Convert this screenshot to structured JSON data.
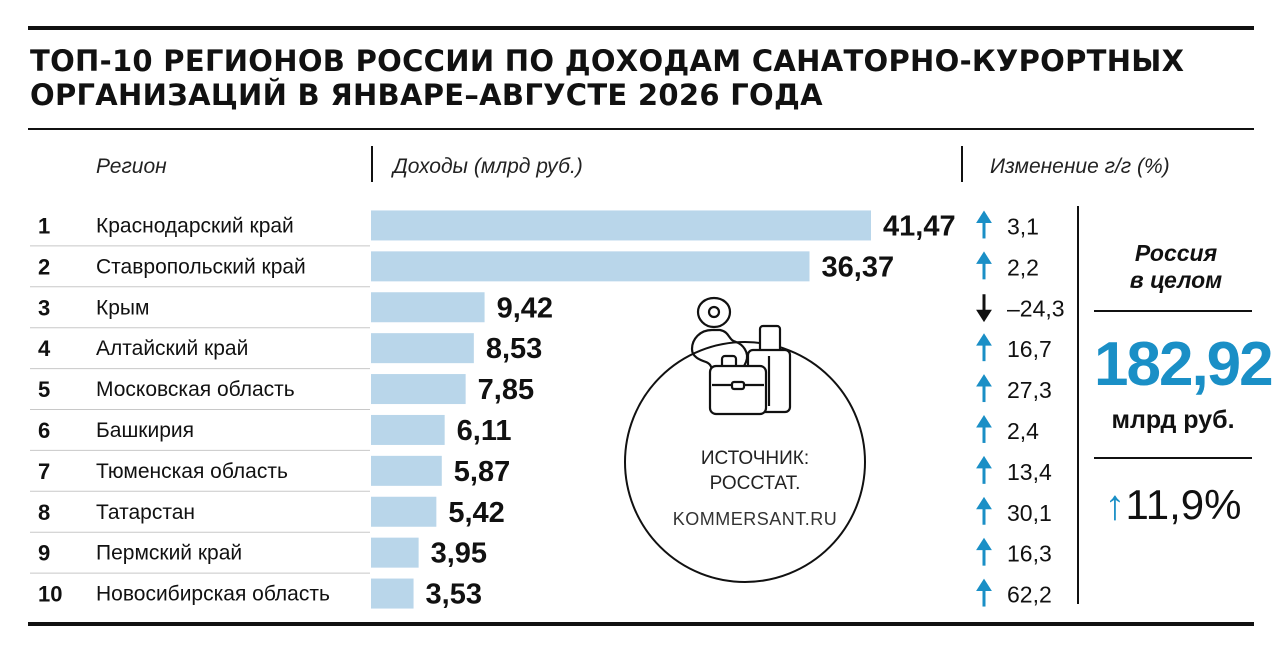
{
  "title_lines": [
    "ТОП-10 РЕГИОНОВ РОССИИ ПО ДОХОДАМ САНАТОРНО-КУРОРТНЫХ",
    "ОРГАНИЗАЦИЙ В ЯНВАРЕ–АВГУСТЕ 2026 ГОДА"
  ],
  "headers": {
    "region": "Регион",
    "income": "Доходы (млрд руб.)",
    "change": "Изменение г/г (%)"
  },
  "colors": {
    "bar": "#b9d6ea",
    "accent": "#1a8fc6",
    "down_arrow": "#111111",
    "text": "#111111"
  },
  "chart_data": {
    "type": "bar",
    "orientation": "horizontal",
    "value_unit": "млрд руб.",
    "categories": [
      "Краснодарский край",
      "Ставропольский край",
      "Крым",
      "Алтайский край",
      "Московская область",
      "Башкирия",
      "Тюменская область",
      "Татарстан",
      "Пермский край",
      "Новосибирская область"
    ],
    "ranks": [
      "1",
      "2",
      "3",
      "4",
      "5",
      "6",
      "7",
      "8",
      "9",
      "10"
    ],
    "values": [
      41.47,
      36.37,
      9.42,
      8.53,
      7.85,
      6.11,
      5.87,
      5.42,
      3.95,
      3.53
    ],
    "value_labels": [
      "41,47",
      "36,37",
      "9,42",
      "8,53",
      "7,85",
      "6,11",
      "5,87",
      "5,42",
      "3,95",
      "3,53"
    ],
    "change_values": [
      3.1,
      2.2,
      -24.3,
      16.7,
      27.3,
      2.4,
      13.4,
      30.1,
      16.3,
      62.2
    ],
    "change_labels": [
      "3,1",
      "2,2",
      "–24,3",
      "16,7",
      "27,3",
      "2,4",
      "13,4",
      "30,1",
      "16,3",
      "62,2"
    ],
    "xlim": [
      0,
      41.47
    ],
    "grid": false,
    "legend": "none"
  },
  "source": {
    "line1": "ИСТОЧНИК:",
    "line2": "РОССТАТ.",
    "site": "KOMMERSANT.RU"
  },
  "icons": [
    "map-pin-icon",
    "suitcase-icon"
  ],
  "total": {
    "title_line1": "Россия",
    "title_line2": "в целом",
    "value": "182,92",
    "unit": "млрд руб.",
    "change_arrow": "↑",
    "change": "11,9%"
  }
}
